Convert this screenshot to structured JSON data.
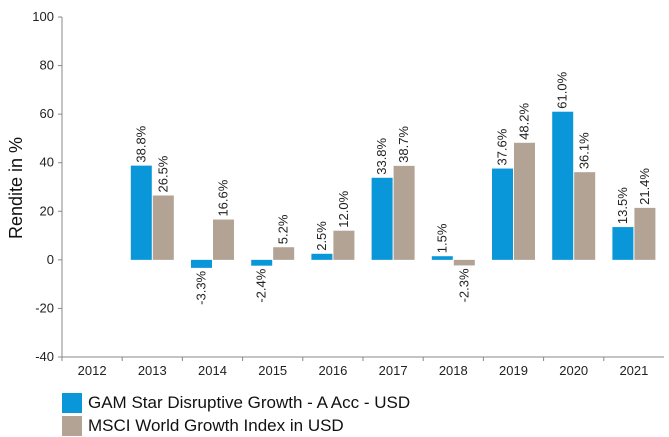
{
  "chart_data": {
    "type": "bar",
    "categories": [
      "2012",
      "2013",
      "2014",
      "2015",
      "2016",
      "2017",
      "2018",
      "2019",
      "2020",
      "2021"
    ],
    "series": [
      {
        "name": "GAM Star Disruptive Growth - A Acc - USD",
        "color": "#0a97d9",
        "values": [
          null,
          38.8,
          -3.3,
          -2.4,
          2.5,
          33.8,
          1.5,
          37.6,
          61.0,
          13.5
        ],
        "labels": [
          "",
          "38.8%",
          "-3.3%",
          "-2.4%",
          "2.5%",
          "33.8%",
          "1.5%",
          "37.6%",
          "61.0%",
          "13.5%"
        ]
      },
      {
        "name": "MSCI World Growth Index in USD",
        "color": "#b2a395",
        "values": [
          null,
          26.5,
          16.6,
          5.2,
          12.0,
          38.7,
          -2.3,
          48.2,
          36.1,
          21.4
        ],
        "labels": [
          "",
          "26.5%",
          "16.6%",
          "5.2%",
          "12.0%",
          "38.7%",
          "-2.3%",
          "48.2%",
          "36.1%",
          "21.4%"
        ]
      }
    ],
    "ylabel": "Rendite in %",
    "ylim": [
      -40,
      100
    ],
    "yticks": [
      "-40",
      "-20",
      "0",
      "20",
      "40",
      "60",
      "80",
      "100"
    ],
    "grid": false,
    "legend_position": "bottom-left"
  }
}
